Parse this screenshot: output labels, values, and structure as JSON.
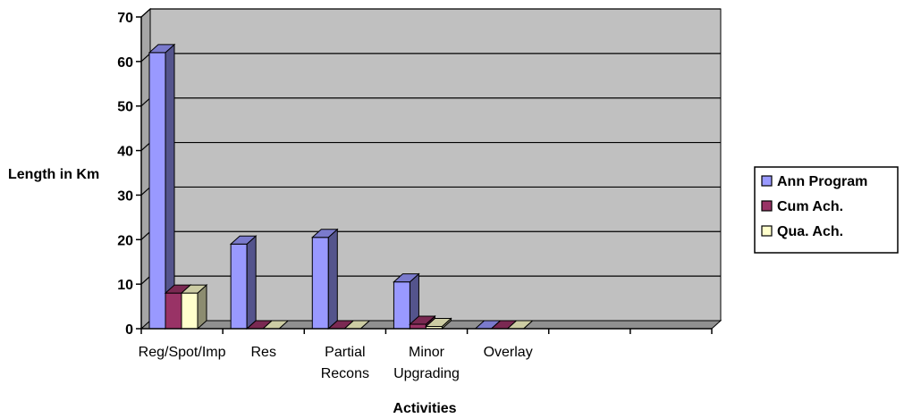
{
  "chart_data": {
    "type": "bar",
    "categories": [
      "Reg/Spot/Imp",
      "Res",
      "Partial Recons",
      "Minor Upgrading",
      "Overlay",
      "",
      ""
    ],
    "category_lines": [
      [
        "Reg/Spot/Imp"
      ],
      [
        "Res"
      ],
      [
        "Partial",
        "Recons"
      ],
      [
        "Minor",
        "Upgrading"
      ],
      [
        "Overlay"
      ],
      [
        ""
      ],
      [
        ""
      ]
    ],
    "series": [
      {
        "name": "Ann Program",
        "values": [
          62,
          19,
          20.5,
          10.5,
          0,
          null,
          null
        ],
        "color": "#9999ff"
      },
      {
        "name": "Cum Ach.",
        "values": [
          8,
          0,
          0,
          1,
          0,
          null,
          null
        ],
        "color": "#993366"
      },
      {
        "name": "Qua. Ach.",
        "values": [
          8,
          0,
          0,
          0.5,
          0,
          null,
          null
        ],
        "color": "#ffffcc"
      }
    ],
    "xlabel": "Activities",
    "ylabel": "Length in Km",
    "ylim": [
      0,
      70
    ],
    "yticks": [
      0,
      10,
      20,
      30,
      40,
      50,
      60,
      70
    ],
    "grid": true,
    "legend": "right",
    "wall_color": "#c0c0c0"
  }
}
